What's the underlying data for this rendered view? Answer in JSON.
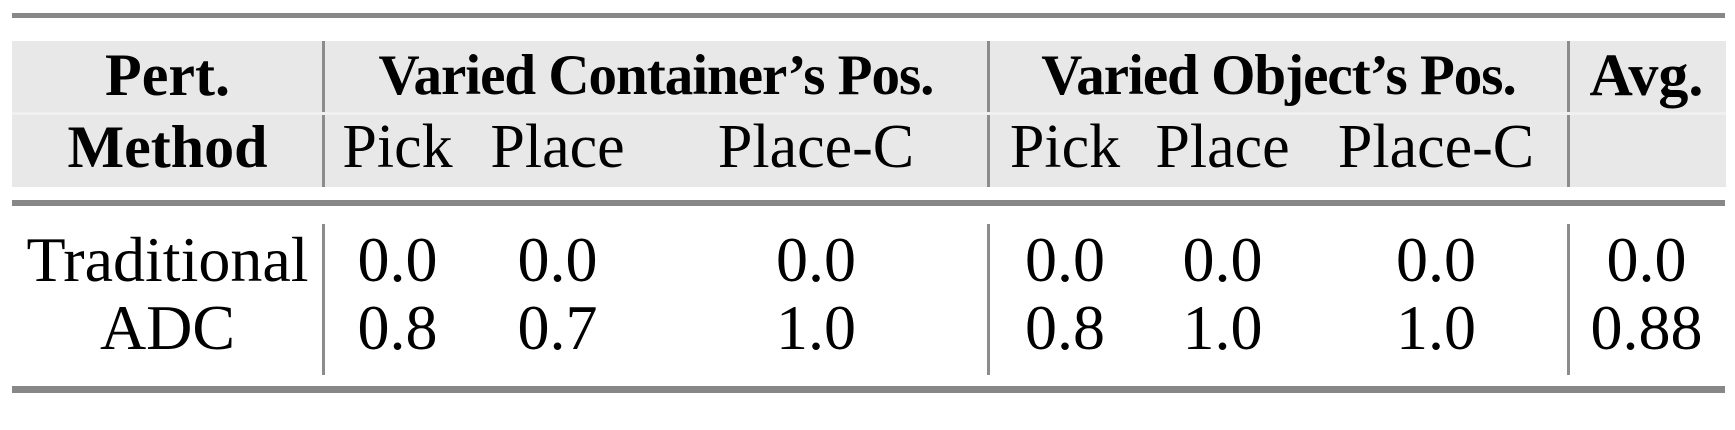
{
  "table": {
    "header": {
      "row_col_line1": "Pert.",
      "row_col_line2": "Method",
      "group1": {
        "title": "Varied Container’s Pos.",
        "subcols": [
          "Pick",
          "Place",
          "Place-C"
        ]
      },
      "group2": {
        "title": "Varied Object’s Pos.",
        "subcols": [
          "Pick",
          "Place",
          "Place-C"
        ]
      },
      "avg_label": "Avg."
    },
    "rows": [
      {
        "method": "Traditional",
        "g1": [
          "0.0",
          "0.0",
          "0.0"
        ],
        "g2": [
          "0.0",
          "0.0",
          "0.0"
        ],
        "avg": "0.0"
      },
      {
        "method": "ADC",
        "g1": [
          "0.8",
          "0.7",
          "1.0"
        ],
        "g2": [
          "0.8",
          "1.0",
          "1.0"
        ],
        "avg": "0.88"
      }
    ],
    "colors": {
      "header_background": "#e8e8e8",
      "rule_gray": "#878787",
      "separator_gray": "#8c8c8c",
      "text": "#000000"
    }
  },
  "chart_data": {
    "type": "table",
    "title": "",
    "column_groups": [
      "",
      "Varied Container’s Pos.",
      "Varied Object’s Pos.",
      ""
    ],
    "columns": [
      "Pert. Method",
      "Pick",
      "Place",
      "Place-C",
      "Pick",
      "Place",
      "Place-C",
      "Avg."
    ],
    "rows": [
      [
        "Traditional",
        0.0,
        0.0,
        0.0,
        0.0,
        0.0,
        0.0,
        0.0
      ],
      [
        "ADC",
        0.8,
        0.7,
        1.0,
        0.8,
        1.0,
        1.0,
        0.88
      ]
    ]
  }
}
